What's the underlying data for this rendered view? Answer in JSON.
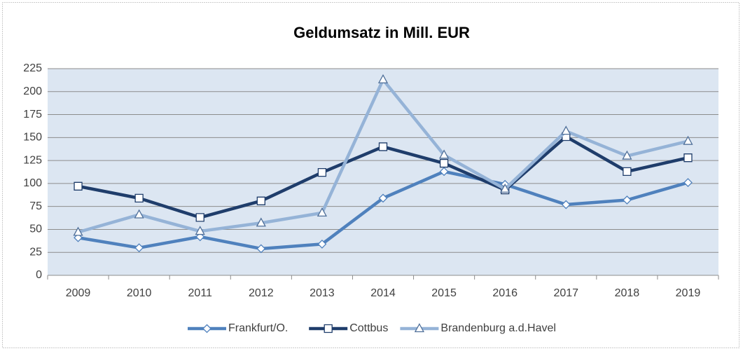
{
  "chart_data": {
    "type": "line",
    "title": "Geldumsatz in Mill. EUR",
    "categories": [
      "2009",
      "2010",
      "2011",
      "2012",
      "2013",
      "2014",
      "2015",
      "2016",
      "2017",
      "2018",
      "2019"
    ],
    "series": [
      {
        "name": "Frankfurt/O.",
        "color": "#4f81bd",
        "marker": "diamond",
        "values": [
          41,
          30,
          42,
          29,
          34,
          84,
          113,
          99,
          77,
          82,
          101
        ]
      },
      {
        "name": "Cottbus",
        "color": "#1f3d6b",
        "marker": "square",
        "values": [
          97,
          84,
          63,
          81,
          112,
          140,
          122,
          93,
          151,
          113,
          128
        ]
      },
      {
        "name": "Brandenburg a.d.Havel",
        "color": "#95b3d7",
        "marker": "triangle",
        "values": [
          47,
          66,
          48,
          57,
          68,
          213,
          131,
          94,
          157,
          130,
          146
        ]
      }
    ],
    "ylim": [
      0,
      225
    ],
    "yticks": [
      0,
      25,
      50,
      75,
      100,
      125,
      150,
      175,
      200,
      225
    ],
    "grid": true,
    "legend": "bottom"
  }
}
